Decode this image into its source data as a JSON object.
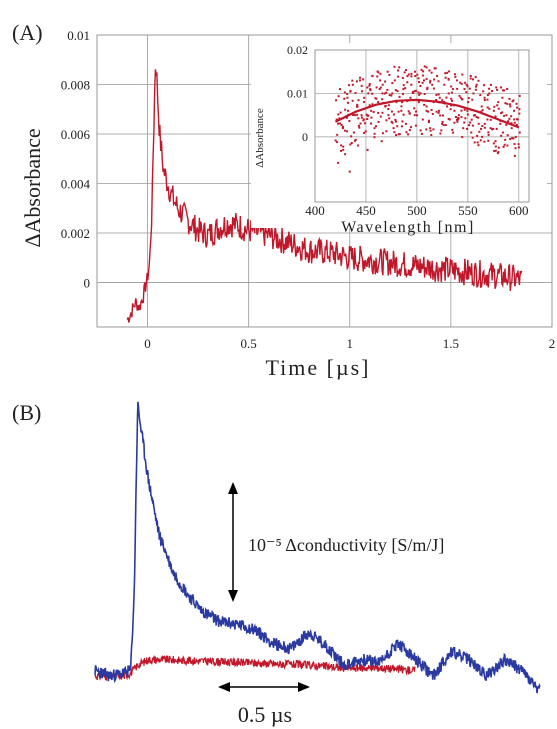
{
  "figure": {
    "panel_a_label": "(A)",
    "panel_b_label": "(B)"
  },
  "colors": {
    "transient": "#c0182a",
    "conductivity": "#2a3aa0",
    "axis": "#888888",
    "grid": "#999999"
  },
  "chart_data": [
    {
      "id": "panel-a-main",
      "type": "line",
      "xlabel": "Time [µs]",
      "ylabel": "ΔAbsorbance",
      "xlim": [
        -0.25,
        2
      ],
      "ylim": [
        -0.0018,
        0.01
      ],
      "xticks": [
        0,
        0.5,
        1,
        1.5,
        2
      ],
      "xtick_labels": [
        "0",
        "0.5",
        "1",
        "1.5",
        "2"
      ],
      "yticks": [
        0,
        0.002,
        0.004,
        0.006,
        0.008,
        0.01
      ],
      "ytick_labels": [
        "0",
        "0.002",
        "0.004",
        "0.006",
        "0.008",
        "0.01"
      ],
      "grid": true,
      "series": [
        {
          "x": [
            -0.1,
            -0.08,
            -0.06,
            -0.04,
            -0.02,
            0,
            0.01,
            0.02,
            0.03,
            0.04,
            0.05,
            0.06,
            0.07,
            0.08,
            0.1,
            0.12,
            0.15,
            0.2,
            0.25,
            0.3,
            0.35,
            0.4,
            0.45,
            0.5,
            0.6,
            0.7,
            0.8,
            0.9,
            1.0,
            1.1,
            1.2,
            1.3,
            1.4,
            1.5,
            1.6,
            1.7,
            1.8,
            1.85
          ],
          "y": [
            -0.0015,
            -0.0012,
            -0.0008,
            -0.001,
            -0.0005,
            0.0002,
            0.0008,
            0.0025,
            0.006,
            0.0092,
            0.0075,
            0.006,
            0.0052,
            0.0045,
            0.004,
            0.0035,
            0.003,
            0.0025,
            0.0021,
            0.0019,
            0.0022,
            0.0024,
            0.0023,
            0.0021,
            0.0019,
            0.0016,
            0.0013,
            0.0012,
            0.001,
            0.0009,
            0.0008,
            0.0007,
            0.0006,
            0.0005,
            0.0004,
            0.0003,
            0.0002,
            0.0001
          ]
        }
      ]
    },
    {
      "id": "panel-a-inset",
      "type": "scatter",
      "xlabel": "Wavelength [nm]",
      "ylabel": "ΔAbsorbance",
      "xlim": [
        400,
        610
      ],
      "ylim": [
        -0.015,
        0.02
      ],
      "xticks": [
        400,
        450,
        500,
        550,
        600
      ],
      "xtick_labels": [
        "400",
        "450",
        "500",
        "550",
        "600"
      ],
      "yticks": [
        0,
        0.01,
        0.02
      ],
      "ytick_labels": [
        "0",
        "0.01",
        "0.02"
      ],
      "grid": true,
      "points": {
        "x_start": 420,
        "x_end": 600,
        "x_step": 2,
        "y": [
          0.004,
          -0.006,
          0.011,
          0.002,
          -0.004,
          0.009,
          0.006,
          -0.008,
          0.012,
          0.001,
          0.007,
          -0.002,
          0.013,
          0.004,
          0.009,
          -0.003,
          0.01,
          0.006,
          0.014,
          0.002,
          0.008,
          0.011,
          -0.001,
          0.012,
          0.007,
          0.015,
          0.005,
          0.01,
          0.002,
          0.013,
          0.008,
          0.016,
          0.006,
          0.011,
          0.003,
          0.014,
          0.009,
          0.012,
          0.005,
          0.015,
          0.008,
          0.01,
          0.004,
          0.013,
          0.007,
          0.011,
          0.002,
          0.012,
          0.008,
          0.014,
          0.006,
          0.009,
          0.003,
          0.012,
          0.007,
          0.01,
          0.004,
          0.011,
          0.006,
          0.013,
          0.005,
          0.009,
          0.002,
          0.011,
          0.006,
          0.008,
          0.001,
          0.01,
          0.005,
          0.012,
          0.003,
          0.007,
          0.0,
          0.009,
          0.004,
          0.01,
          0.002,
          0.006,
          -0.001,
          0.008,
          0.003,
          0.009,
          0.001,
          0.005,
          -0.002,
          0.007,
          0.002,
          0.006,
          0.0,
          0.004,
          0.001
        ]
      },
      "fit": {
        "x": [
          420,
          440,
          460,
          480,
          500,
          520,
          540,
          560,
          580,
          600
        ],
        "y": [
          0.0035,
          0.0058,
          0.0074,
          0.0083,
          0.0085,
          0.0081,
          0.0072,
          0.0058,
          0.004,
          0.0022
        ]
      }
    },
    {
      "id": "panel-b",
      "type": "line",
      "annotations": {
        "vertical_scale": "10⁻⁵ Δconductivity [S/m/J]",
        "horizontal_scale": "0.5 µs"
      },
      "series": [
        {
          "color_key": "conductivity",
          "t": [
            0,
            0.08,
            0.16,
            0.2,
            0.22,
            0.24,
            0.26,
            0.3,
            0.36,
            0.44,
            0.52,
            0.6,
            0.7,
            0.8,
            0.9,
            1.0,
            1.1,
            1.2,
            1.3,
            1.4,
            1.5,
            1.6,
            1.7,
            1.8,
            1.9,
            2.0,
            2.1,
            2.2,
            2.3,
            2.4,
            2.5
          ],
          "y": [
            0.02,
            0.0,
            0.01,
            0.02,
            0.3,
            1.0,
            0.9,
            0.72,
            0.52,
            0.38,
            0.3,
            0.24,
            0.2,
            0.19,
            0.17,
            0.12,
            0.1,
            0.16,
            0.11,
            0.04,
            0.06,
            0.05,
            0.12,
            0.06,
            0.0,
            0.09,
            0.06,
            0.0,
            0.06,
            0.02,
            -0.06
          ]
        },
        {
          "color_key": "transient",
          "t": [
            0,
            0.08,
            0.16,
            0.2,
            0.24,
            0.3,
            0.4,
            0.6,
            0.8,
            1.0,
            1.2,
            1.4,
            1.6,
            1.8
          ],
          "y": [
            0.0,
            0.0,
            0.0,
            0.01,
            0.04,
            0.06,
            0.06,
            0.055,
            0.05,
            0.045,
            0.04,
            0.03,
            0.03,
            0.02
          ]
        }
      ]
    }
  ]
}
